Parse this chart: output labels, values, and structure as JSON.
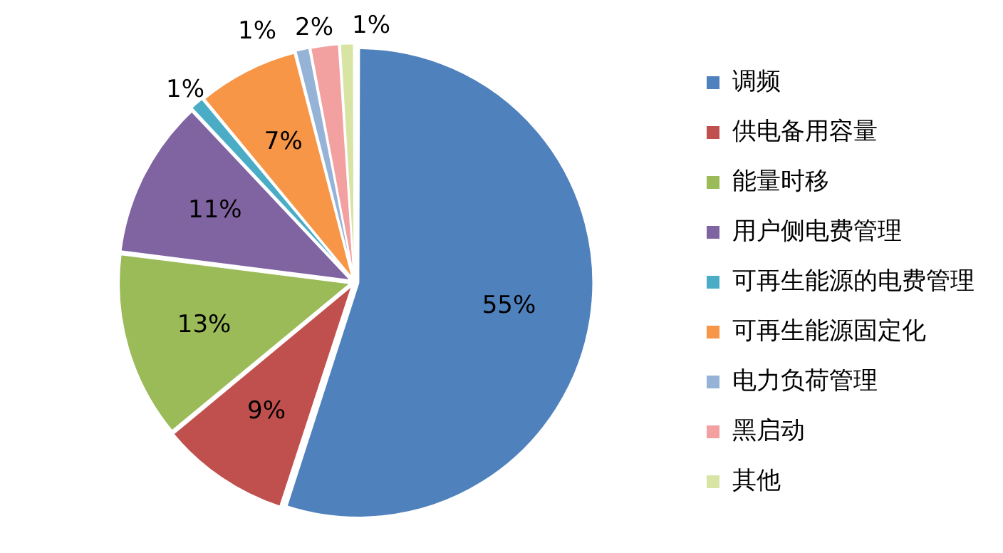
{
  "chart_data": {
    "type": "pie",
    "categories": [
      "调频",
      "供电备用容量",
      "能量时移",
      "用户侧电费管理",
      "可再生能源的电费管理",
      "可再生能源固定化",
      "电力负荷管理",
      "黑启动",
      "其他"
    ],
    "values": [
      55,
      9,
      13,
      11,
      1,
      7,
      1,
      2,
      1
    ],
    "value_labels": [
      "55%",
      "9%",
      "13%",
      "11%",
      "1%",
      "7%",
      "1%",
      "2%",
      "1%"
    ],
    "colors": [
      "#4f81bd",
      "#c0504d",
      "#9bbb59",
      "#8064a2",
      "#4bacc6",
      "#f79646",
      "#95b3d7",
      "#f2a0a0",
      "#d7e4a4"
    ],
    "legend": "right"
  }
}
